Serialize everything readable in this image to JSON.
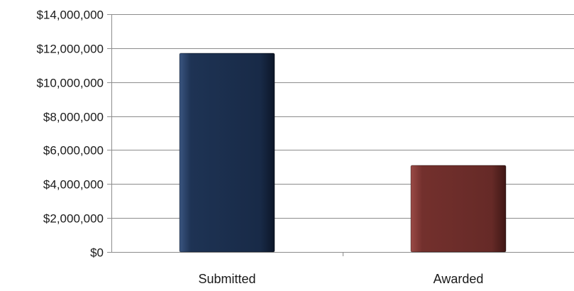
{
  "chart_data": {
    "type": "bar",
    "categories": [
      "Submitted",
      "Awarded"
    ],
    "values": [
      11700000,
      5100000
    ],
    "ylim": [
      0,
      14000000
    ],
    "y_ticks": [
      0,
      2000000,
      4000000,
      6000000,
      8000000,
      10000000,
      12000000,
      14000000
    ],
    "y_tick_labels": [
      "$0",
      "$2,000,000",
      "$4,000,000",
      "$6,000,000",
      "$8,000,000",
      "$10,000,000",
      "$12,000,000",
      "$14,000,000"
    ],
    "grid": true,
    "legend": "none",
    "colors": [
      "#1b2d4b",
      "#6b2c2a"
    ]
  }
}
